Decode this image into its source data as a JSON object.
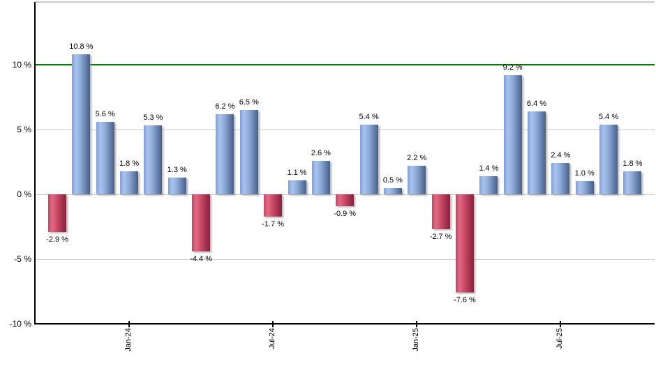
{
  "chart_data": {
    "type": "bar",
    "title": "",
    "xlabel": "",
    "ylabel": "",
    "grid": true,
    "bars": [
      {
        "value": -2.9,
        "label": "-2.9 %"
      },
      {
        "value": 10.8,
        "label": "10.8 %"
      },
      {
        "value": 5.6,
        "label": "5.6 %"
      },
      {
        "value": 1.8,
        "label": "1.8 %"
      },
      {
        "value": 5.3,
        "label": "5.3 %"
      },
      {
        "value": 1.3,
        "label": "1.3 %"
      },
      {
        "value": -4.4,
        "label": "-4.4 %"
      },
      {
        "value": 6.2,
        "label": "6.2 %"
      },
      {
        "value": 6.5,
        "label": "6.5 %"
      },
      {
        "value": -1.7,
        "label": "-1.7 %"
      },
      {
        "value": 1.1,
        "label": "1.1 %"
      },
      {
        "value": 2.6,
        "label": "2.6 %"
      },
      {
        "value": -0.9,
        "label": "-0.9 %"
      },
      {
        "value": 5.4,
        "label": "5.4 %"
      },
      {
        "value": 0.5,
        "label": "0.5 %"
      },
      {
        "value": 2.2,
        "label": "2.2 %"
      },
      {
        "value": -2.7,
        "label": "-2.7 %"
      },
      {
        "value": -7.6,
        "label": "-7.6 %"
      },
      {
        "value": 1.4,
        "label": "1.4 %"
      },
      {
        "value": 9.2,
        "label": "9.2 %"
      },
      {
        "value": 6.4,
        "label": "6.4 %"
      },
      {
        "value": 2.4,
        "label": "2.4 %"
      },
      {
        "value": 1.0,
        "label": "1.0 %"
      },
      {
        "value": 5.4,
        "label": "5.4 %"
      },
      {
        "value": 1.8,
        "label": "1.8 %"
      }
    ],
    "x_ticks": [
      {
        "bar_index": 3,
        "label": "Jan-24"
      },
      {
        "bar_index": 9,
        "label": "Jul-24"
      },
      {
        "bar_index": 15,
        "label": "Jan-25"
      },
      {
        "bar_index": 21,
        "label": "Jul-25"
      }
    ],
    "y_axis": {
      "ticks": [
        {
          "value": 10,
          "label": "10 %"
        },
        {
          "value": 5,
          "label": "5 %"
        },
        {
          "value": 0,
          "label": "0 %"
        },
        {
          "value": -5,
          "label": "-5 %"
        },
        {
          "value": -10,
          "label": "-10 %"
        }
      ],
      "range": [
        -10,
        14.8
      ]
    },
    "reference_line": {
      "value": 10,
      "color": "#007c00"
    },
    "legend": null,
    "colors": {
      "positive_bar": "#7e9ed8",
      "positive_bar_highlight": "#a9c3ec",
      "positive_bar_shade": "#4a5f88",
      "negative_bar": "#c34560",
      "negative_bar_highlight": "#e06a84",
      "negative_bar_shade": "#8d2340",
      "gridline": "#c9c9c9",
      "axis": "#000000",
      "background": "#ffffff",
      "label_text": "#000000"
    }
  }
}
